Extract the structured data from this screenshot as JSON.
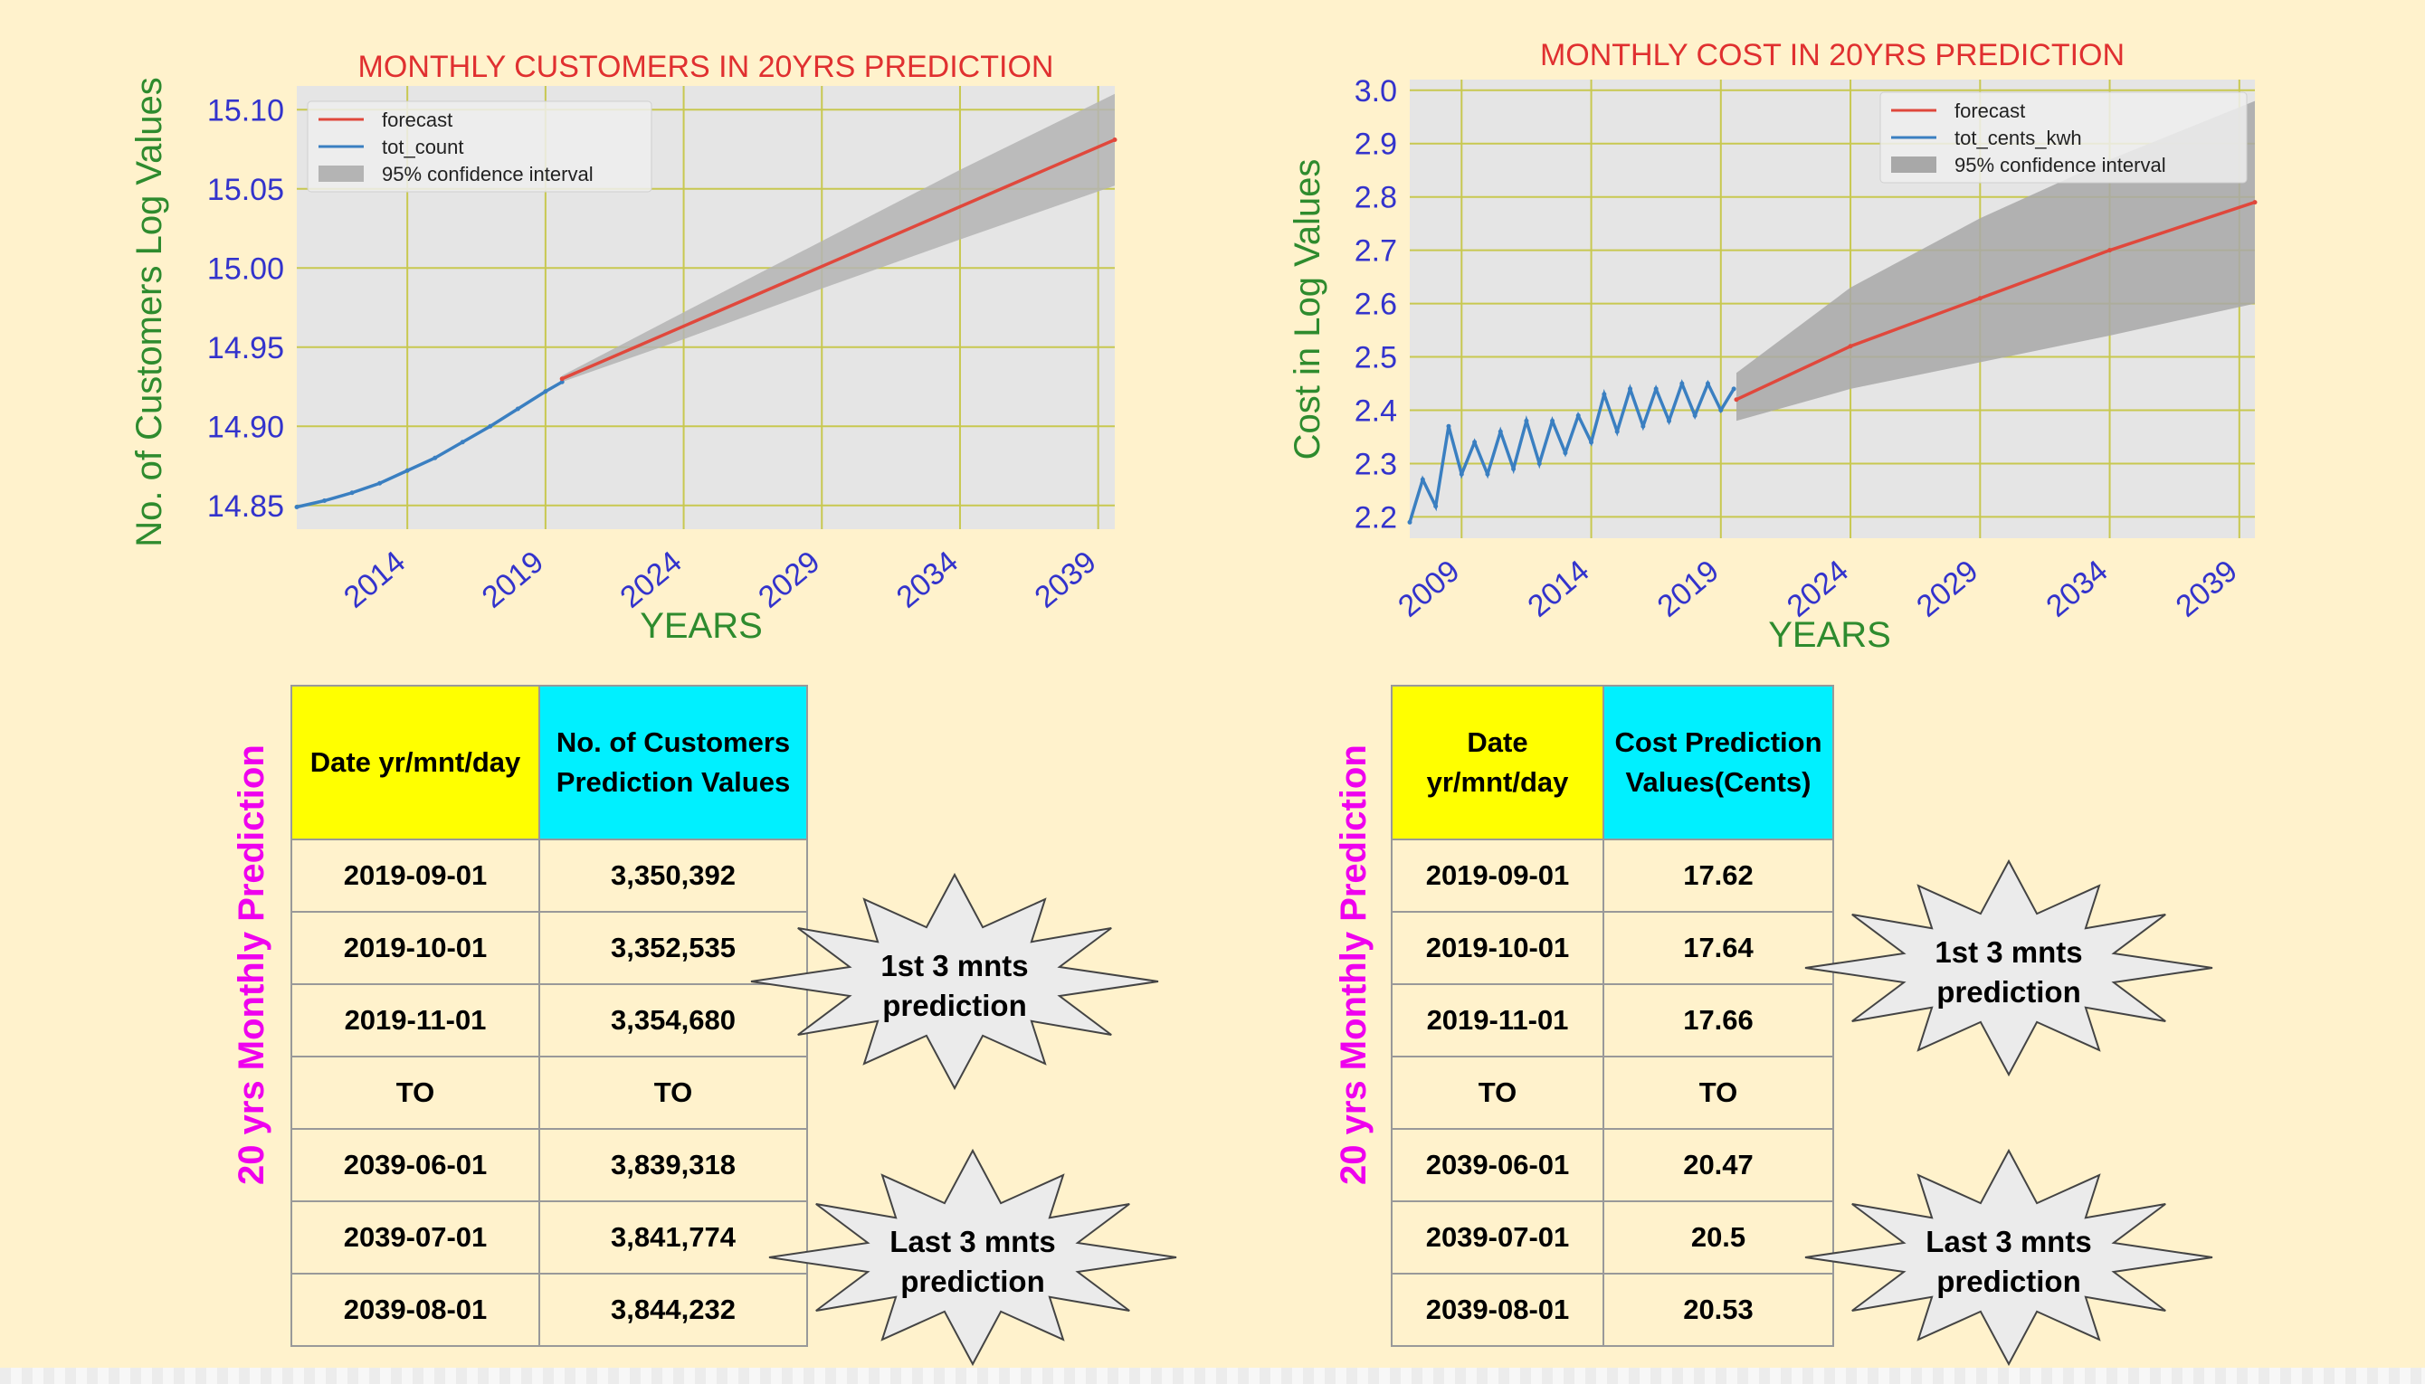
{
  "chart_data": [
    {
      "type": "line",
      "title": "MONTHLY CUSTOMERS IN 20YRS PREDICTION",
      "xlabel": "YEARS",
      "ylabel": "No. of Customers Log Values",
      "x_ticks": [
        "2014",
        "2019",
        "2024",
        "2029",
        "2034",
        "2039"
      ],
      "y_ticks": [
        "14.85",
        "14.90",
        "14.95",
        "15.00",
        "15.05",
        "15.10"
      ],
      "xlim": [
        2010.0,
        2039.6
      ],
      "ylim": [
        14.835,
        15.115
      ],
      "grid": true,
      "legend_position": "top-left",
      "legend": [
        "forecast",
        "tot_count",
        "95% confidence interval"
      ],
      "series": [
        {
          "name": "tot_count",
          "color": "#3a7fc1",
          "x": [
            2010.0,
            2011.0,
            2012.0,
            2013.0,
            2014.0,
            2015.0,
            2016.0,
            2017.0,
            2018.0,
            2019.0,
            2019.6
          ],
          "y": [
            14.849,
            14.853,
            14.858,
            14.864,
            14.872,
            14.88,
            14.89,
            14.9,
            14.911,
            14.922,
            14.928
          ]
        },
        {
          "name": "forecast",
          "color": "#e0483c",
          "x": [
            2019.6,
            2039.6
          ],
          "y": [
            14.93,
            15.081
          ]
        }
      ],
      "confidence_interval": {
        "name": "95% confidence interval",
        "color": "#b4b4b4",
        "x": [
          2019.6,
          2024,
          2029,
          2034,
          2039.6
        ],
        "lower": [
          14.928,
          14.955,
          14.987,
          15.018,
          15.052
        ],
        "upper": [
          14.932,
          14.972,
          15.017,
          15.062,
          15.11
        ]
      }
    },
    {
      "type": "line",
      "title": "MONTHLY COST IN 20YRS PREDICTION",
      "xlabel": "YEARS",
      "ylabel": "Cost in Log Values",
      "x_ticks": [
        "2009",
        "2014",
        "2019",
        "2024",
        "2029",
        "2034",
        "2039"
      ],
      "y_ticks": [
        "2.2",
        "2.3",
        "2.4",
        "2.5",
        "2.6",
        "2.7",
        "2.8",
        "2.9",
        "3.0"
      ],
      "xlim": [
        2007.0,
        2039.6
      ],
      "ylim": [
        2.16,
        3.02
      ],
      "grid": true,
      "legend_position": "top-right",
      "legend": [
        "forecast",
        "tot_cents_kwh",
        "95% confidence interval"
      ],
      "series": [
        {
          "name": "tot_cents_kwh",
          "color": "#3a7fc1",
          "x": [
            2007.0,
            2007.5,
            2008.0,
            2008.5,
            2009.0,
            2009.5,
            2010.0,
            2010.5,
            2011.0,
            2011.5,
            2012.0,
            2012.5,
            2013.0,
            2013.5,
            2014.0,
            2014.5,
            2015.0,
            2015.5,
            2016.0,
            2016.5,
            2017.0,
            2017.5,
            2018.0,
            2018.5,
            2019.0,
            2019.5
          ],
          "y": [
            2.19,
            2.27,
            2.22,
            2.37,
            2.28,
            2.34,
            2.28,
            2.36,
            2.29,
            2.38,
            2.3,
            2.38,
            2.32,
            2.39,
            2.34,
            2.43,
            2.36,
            2.44,
            2.37,
            2.44,
            2.38,
            2.45,
            2.39,
            2.45,
            2.4,
            2.44
          ]
        },
        {
          "name": "forecast",
          "color": "#e0483c",
          "x": [
            2019.6,
            2024,
            2029,
            2034,
            2039.6
          ],
          "y": [
            2.42,
            2.52,
            2.61,
            2.7,
            2.79
          ]
        }
      ],
      "confidence_interval": {
        "name": "95% confidence interval",
        "color": "#a8a8a8",
        "x": [
          2019.6,
          2024,
          2029,
          2034,
          2039.6
        ],
        "lower": [
          2.38,
          2.44,
          2.49,
          2.54,
          2.6
        ],
        "upper": [
          2.47,
          2.63,
          2.76,
          2.87,
          2.98
        ]
      }
    }
  ],
  "tables": {
    "customers": {
      "side_label": "20 yrs Monthly Prediction",
      "header": {
        "date": "Date yr/mnt/day",
        "value": "No. of Customers Prediction Values"
      },
      "rows": [
        {
          "date": "2019-09-01",
          "value": "3,350,392"
        },
        {
          "date": "2019-10-01",
          "value": "3,352,535"
        },
        {
          "date": "2019-11-01",
          "value": "3,354,680"
        },
        {
          "date": "TO",
          "value": "TO"
        },
        {
          "date": "2039-06-01",
          "value": "3,839,318"
        },
        {
          "date": "2039-07-01",
          "value": "3,841,774"
        },
        {
          "date": "2039-08-01",
          "value": "3,844,232"
        }
      ],
      "callouts": {
        "first": [
          "1st 3 mnts",
          "prediction"
        ],
        "last": [
          "Last 3 mnts",
          "prediction"
        ]
      }
    },
    "cost": {
      "side_label": "20 yrs Monthly Prediction",
      "header": {
        "date": "Date yr/mnt/day",
        "value": "Cost Prediction Values(Cents)"
      },
      "rows": [
        {
          "date": "2019-09-01",
          "value": "17.62"
        },
        {
          "date": "2019-10-01",
          "value": "17.64"
        },
        {
          "date": "2019-11-01",
          "value": "17.66"
        },
        {
          "date": "TO",
          "value": "TO"
        },
        {
          "date": "2039-06-01",
          "value": "20.47"
        },
        {
          "date": "2039-07-01",
          "value": "20.5"
        },
        {
          "date": "2039-08-01",
          "value": "20.53"
        }
      ],
      "callouts": {
        "first": [
          "1st 3 mnts",
          "prediction"
        ],
        "last": [
          "Last 3 mnts",
          "prediction"
        ]
      }
    }
  },
  "colors": {
    "background": "#fff2cc",
    "header_date": "#ffff00",
    "header_value": "#00f0ff",
    "side_label": "#ee00ee",
    "plot_bg": "#e5e5e5",
    "grid": "#c8c850"
  }
}
